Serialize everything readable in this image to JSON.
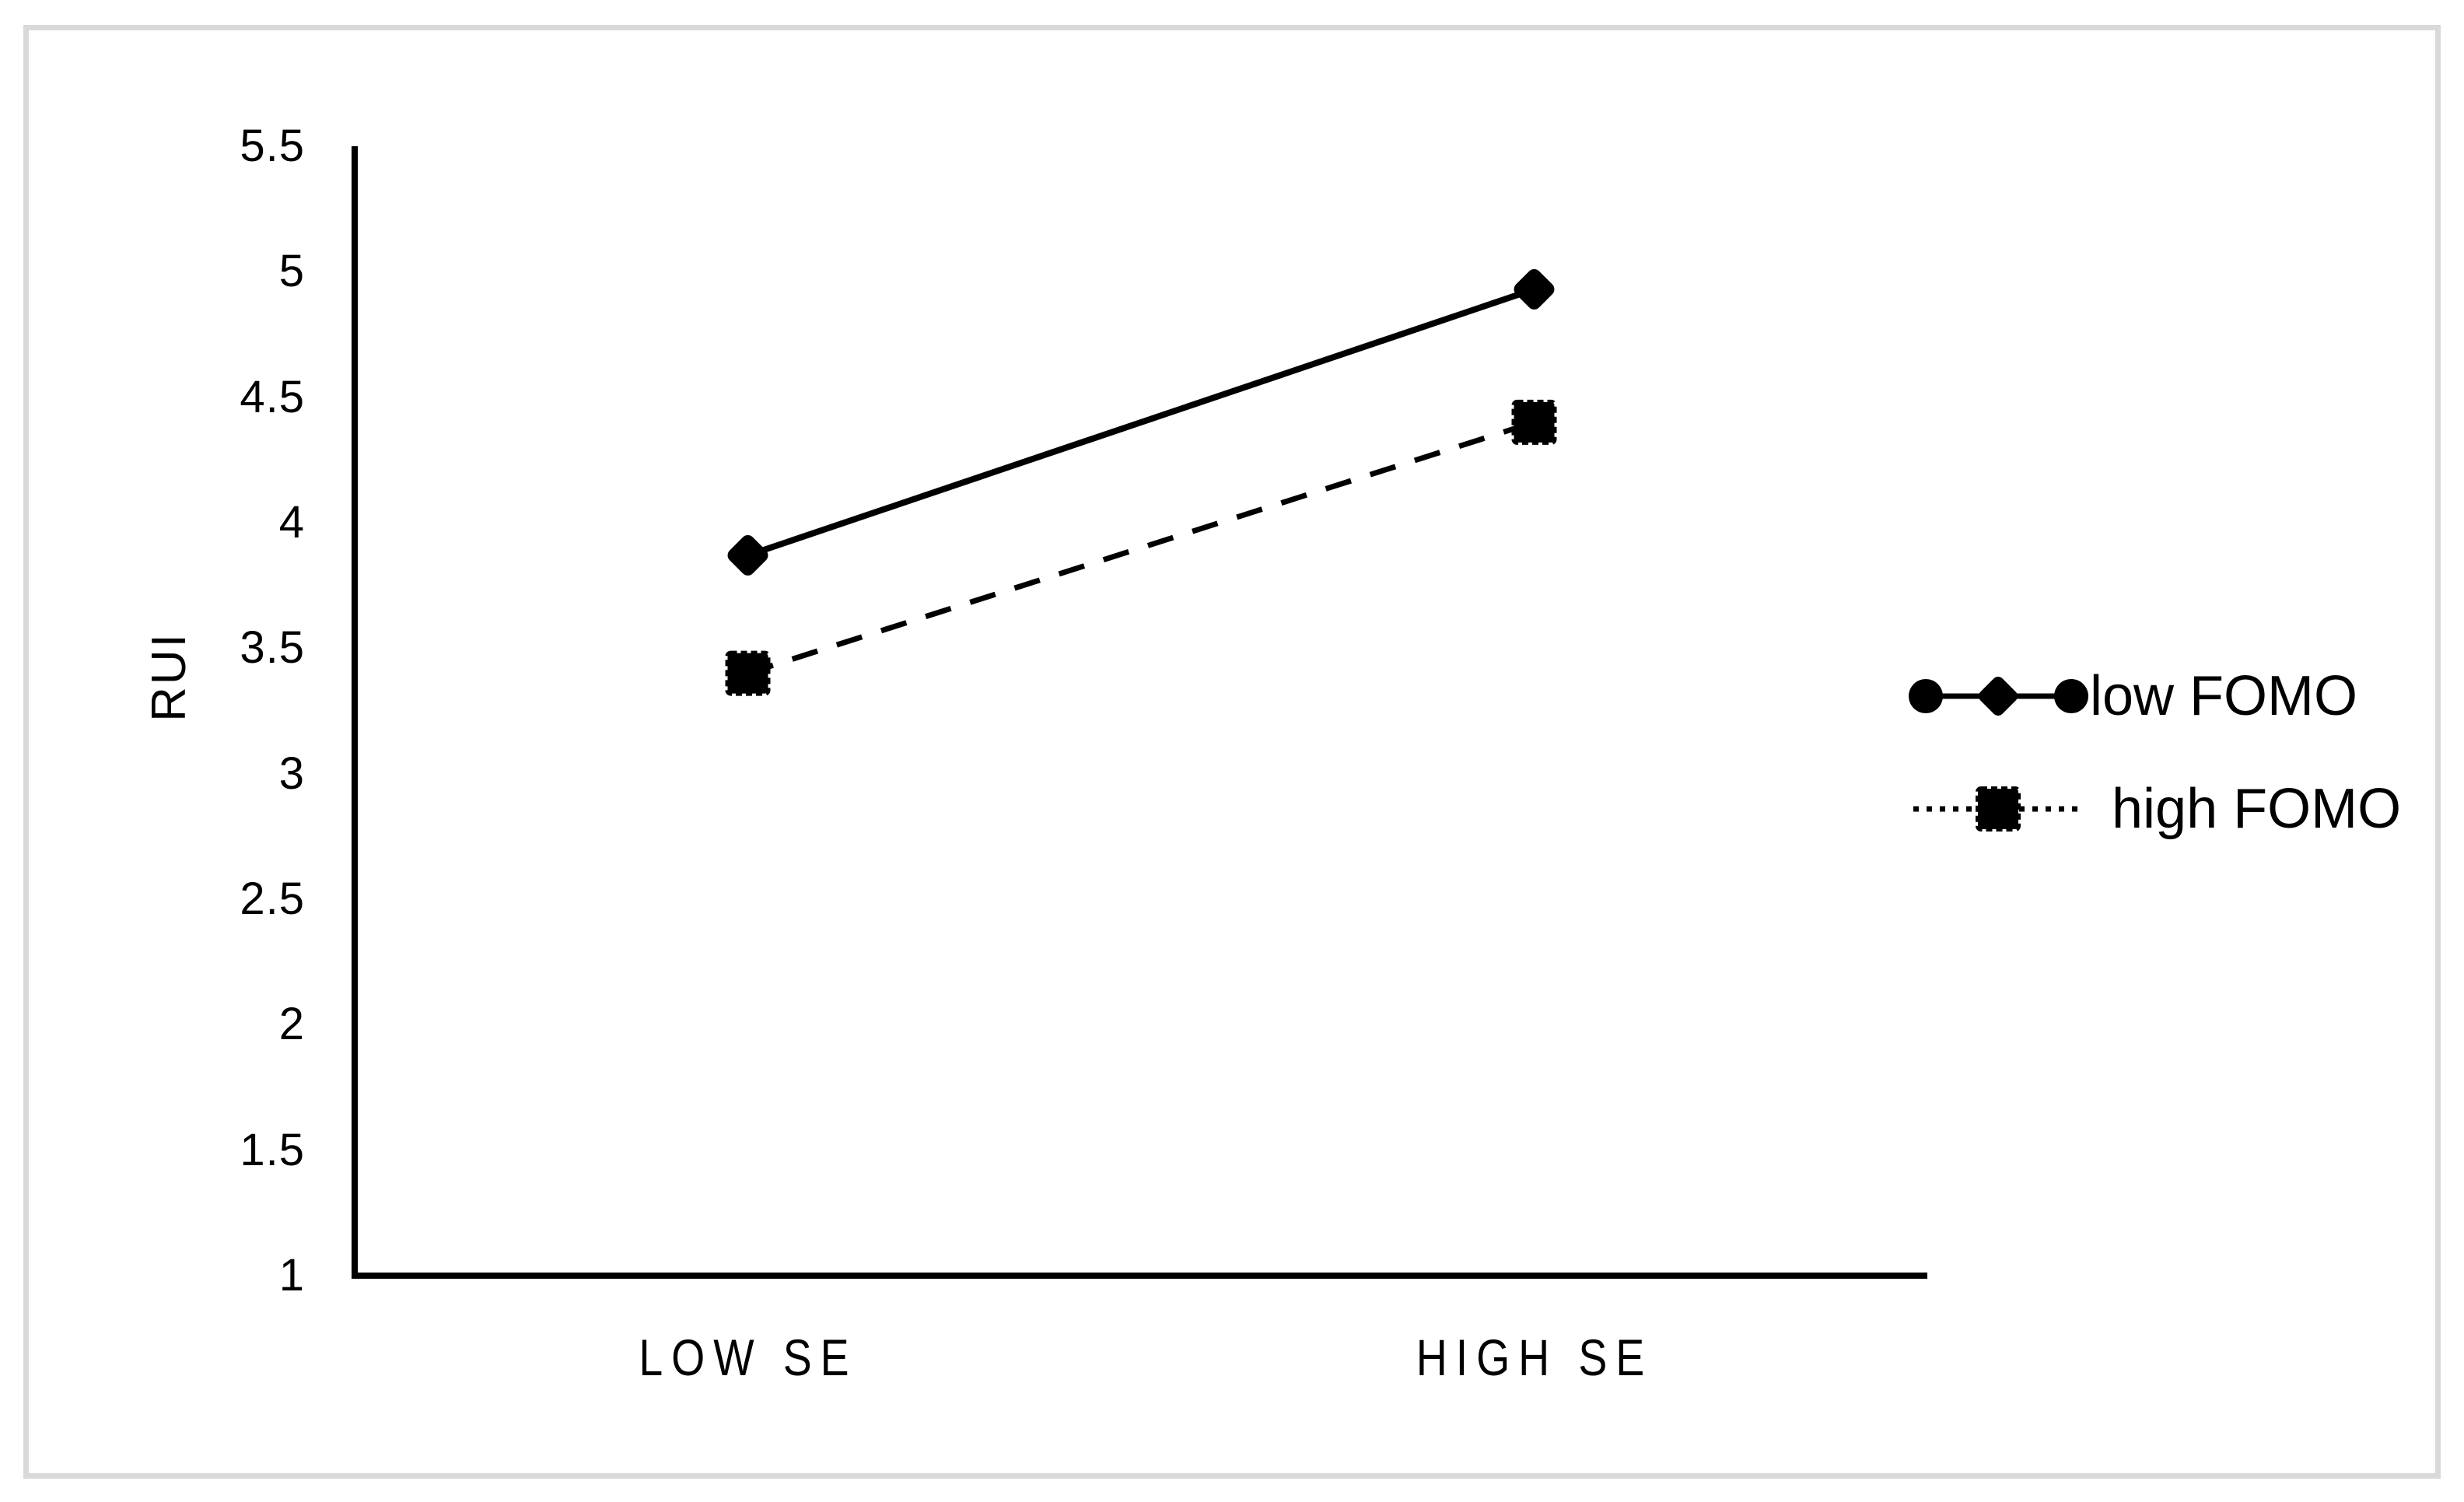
{
  "figure": {
    "background_color": "#ffffff",
    "frame_color": "#d9d9d9",
    "series_color": "#000000"
  },
  "chart_data": {
    "type": "line",
    "title": "",
    "categories": [
      "LOW SE",
      "HIGH SE"
    ],
    "series": [
      {
        "name": "low FOMO",
        "values": [
          3.87,
          4.93
        ],
        "line_style": "solid",
        "marker": "diamond"
      },
      {
        "name": "high FOMO",
        "values": [
          3.4,
          4.4
        ],
        "line_style": "dashed",
        "marker": "square"
      }
    ],
    "xlabel": "",
    "ylabel": "RUI",
    "ylim": [
      1,
      5.5
    ],
    "y_tick_labels": [
      "5.5",
      "5",
      "4.5",
      "4",
      "3.5",
      "3",
      "2.5",
      "2",
      "1.5",
      "1"
    ],
    "y_tick_values": [
      5.5,
      5,
      4.5,
      4,
      3.5,
      3,
      2.5,
      2,
      1.5,
      1
    ],
    "grid": false,
    "legend_position": "center-right"
  }
}
